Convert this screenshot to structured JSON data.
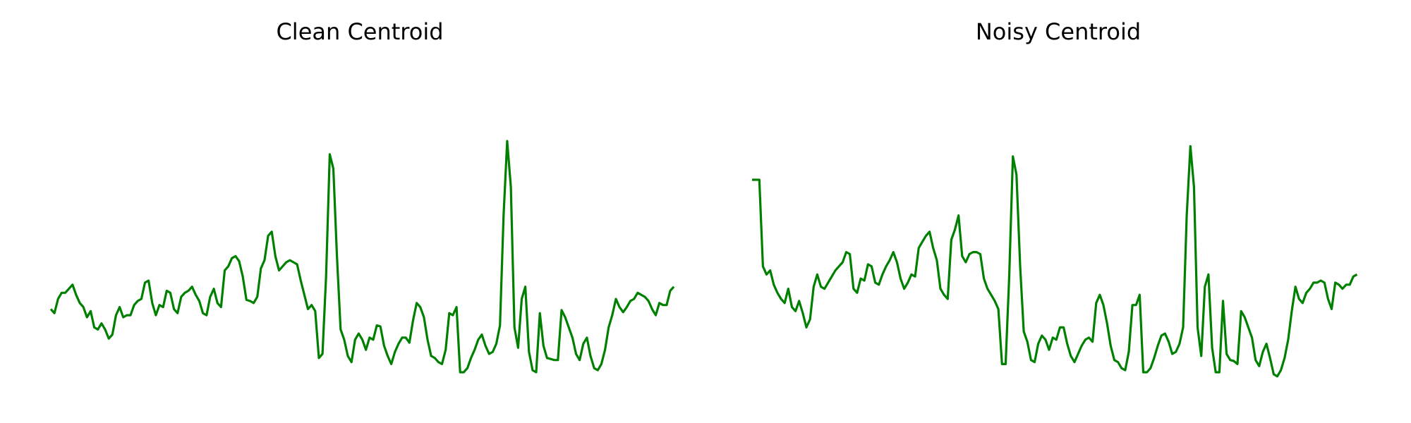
{
  "chart_data": [
    {
      "type": "line",
      "title": "Clean Centroid",
      "xlabel": "",
      "ylabel": "",
      "axes_visible": false,
      "grid": false,
      "legend": "none",
      "color": "#008000",
      "xlim": [
        0,
        171
      ],
      "ylim": [
        -1.3,
        2.3
      ],
      "series": [
        {
          "values": [
            -0.32,
            -0.36,
            -0.22,
            -0.16,
            -0.16,
            -0.12,
            -0.08,
            -0.18,
            -0.26,
            -0.3,
            -0.4,
            -0.34,
            -0.5,
            -0.52,
            -0.46,
            -0.52,
            -0.61,
            -0.57,
            -0.38,
            -0.3,
            -0.4,
            -0.38,
            -0.38,
            -0.28,
            -0.24,
            -0.22,
            -0.06,
            -0.04,
            -0.26,
            -0.38,
            -0.28,
            -0.3,
            -0.14,
            -0.16,
            -0.32,
            -0.36,
            -0.2,
            -0.16,
            -0.14,
            -0.1,
            -0.18,
            -0.24,
            -0.36,
            -0.38,
            -0.2,
            -0.12,
            -0.26,
            -0.3,
            0.06,
            0.1,
            0.18,
            0.2,
            0.15,
            0.0,
            -0.23,
            -0.24,
            -0.26,
            -0.2,
            0.08,
            0.16,
            0.4,
            0.44,
            0.2,
            0.06,
            0.1,
            0.14,
            0.16,
            0.14,
            0.12,
            -0.04,
            -0.18,
            -0.32,
            -0.28,
            -0.34,
            -0.8,
            -0.76,
            0.0,
            1.2,
            1.06,
            0.2,
            -0.52,
            -0.62,
            -0.78,
            -0.84,
            -0.62,
            -0.56,
            -0.62,
            -0.72,
            -0.6,
            -0.62,
            -0.48,
            -0.49,
            -0.68,
            -0.78,
            -0.86,
            -0.74,
            -0.66,
            -0.6,
            -0.6,
            -0.65,
            -0.43,
            -0.26,
            -0.3,
            -0.4,
            -0.62,
            -0.78,
            -0.8,
            -0.84,
            -0.86,
            -0.72,
            -0.36,
            -0.38,
            -0.3,
            -0.94,
            -0.94,
            -0.9,
            -0.8,
            -0.72,
            -0.62,
            -0.57,
            -0.68,
            -0.76,
            -0.74,
            -0.66,
            -0.48,
            0.6,
            1.33,
            0.88,
            -0.5,
            -0.7,
            -0.22,
            -0.1,
            -0.74,
            -0.92,
            -0.94,
            -0.36,
            -0.68,
            -0.8,
            -0.81,
            -0.82,
            -0.82,
            -0.33,
            -0.4,
            -0.5,
            -0.6,
            -0.76,
            -0.82,
            -0.66,
            -0.6,
            -0.78,
            -0.9,
            -0.92,
            -0.86,
            -0.72,
            -0.5,
            -0.38,
            -0.22,
            -0.3,
            -0.35,
            -0.3,
            -0.24,
            -0.22,
            -0.16,
            -0.18,
            -0.2,
            -0.24,
            -0.32,
            -0.38,
            -0.26,
            -0.28,
            -0.28,
            -0.14,
            -0.1
          ]
        }
      ]
    },
    {
      "type": "line",
      "title": "Noisy Centroid",
      "xlabel": "",
      "ylabel": "",
      "axes_visible": false,
      "grid": false,
      "legend": "none",
      "color": "#008000",
      "xlim": [
        0,
        171
      ],
      "ylim": [
        -1.3,
        2.3
      ],
      "series": [
        {
          "values": [
            0.95,
            0.95,
            0.95,
            0.1,
            0.02,
            0.06,
            -0.08,
            -0.16,
            -0.22,
            -0.26,
            -0.12,
            -0.3,
            -0.34,
            -0.24,
            -0.36,
            -0.5,
            -0.42,
            -0.1,
            0.02,
            -0.1,
            -0.12,
            -0.06,
            0.0,
            0.06,
            0.1,
            0.14,
            0.24,
            0.22,
            -0.12,
            -0.16,
            -0.02,
            -0.04,
            0.12,
            0.1,
            -0.06,
            -0.08,
            0.02,
            0.1,
            0.16,
            0.24,
            0.14,
            -0.02,
            -0.12,
            -0.06,
            0.02,
            0.0,
            0.28,
            0.34,
            0.4,
            0.44,
            0.28,
            0.16,
            -0.12,
            -0.18,
            -0.22,
            0.36,
            0.46,
            0.6,
            0.2,
            0.14,
            0.22,
            0.24,
            0.24,
            0.22,
            -0.02,
            -0.12,
            -0.18,
            -0.24,
            -0.32,
            -0.86,
            -0.86,
            0.0,
            1.18,
            1.0,
            0.1,
            -0.54,
            -0.64,
            -0.82,
            -0.84,
            -0.66,
            -0.58,
            -0.62,
            -0.72,
            -0.6,
            -0.62,
            -0.5,
            -0.5,
            -0.66,
            -0.78,
            -0.84,
            -0.76,
            -0.68,
            -0.62,
            -0.6,
            -0.64,
            -0.26,
            -0.18,
            -0.28,
            -0.46,
            -0.68,
            -0.82,
            -0.84,
            -0.9,
            -0.92,
            -0.74,
            -0.28,
            -0.28,
            -0.18,
            -0.94,
            -0.94,
            -0.9,
            -0.8,
            -0.68,
            -0.58,
            -0.56,
            -0.64,
            -0.76,
            -0.74,
            -0.66,
            -0.5,
            0.6,
            1.28,
            0.88,
            -0.5,
            -0.78,
            -0.1,
            0.02,
            -0.7,
            -0.94,
            -0.94,
            -0.24,
            -0.76,
            -0.82,
            -0.83,
            -0.86,
            -0.34,
            -0.4,
            -0.5,
            -0.6,
            -0.82,
            -0.88,
            -0.74,
            -0.66,
            -0.8,
            -0.96,
            -0.98,
            -0.92,
            -0.8,
            -0.62,
            -0.34,
            -0.1,
            -0.22,
            -0.26,
            -0.16,
            -0.12,
            -0.06,
            -0.06,
            -0.04,
            -0.06,
            -0.22,
            -0.32,
            -0.06,
            -0.08,
            -0.12,
            -0.08,
            -0.08,
            0.0,
            0.02
          ]
        }
      ]
    }
  ]
}
